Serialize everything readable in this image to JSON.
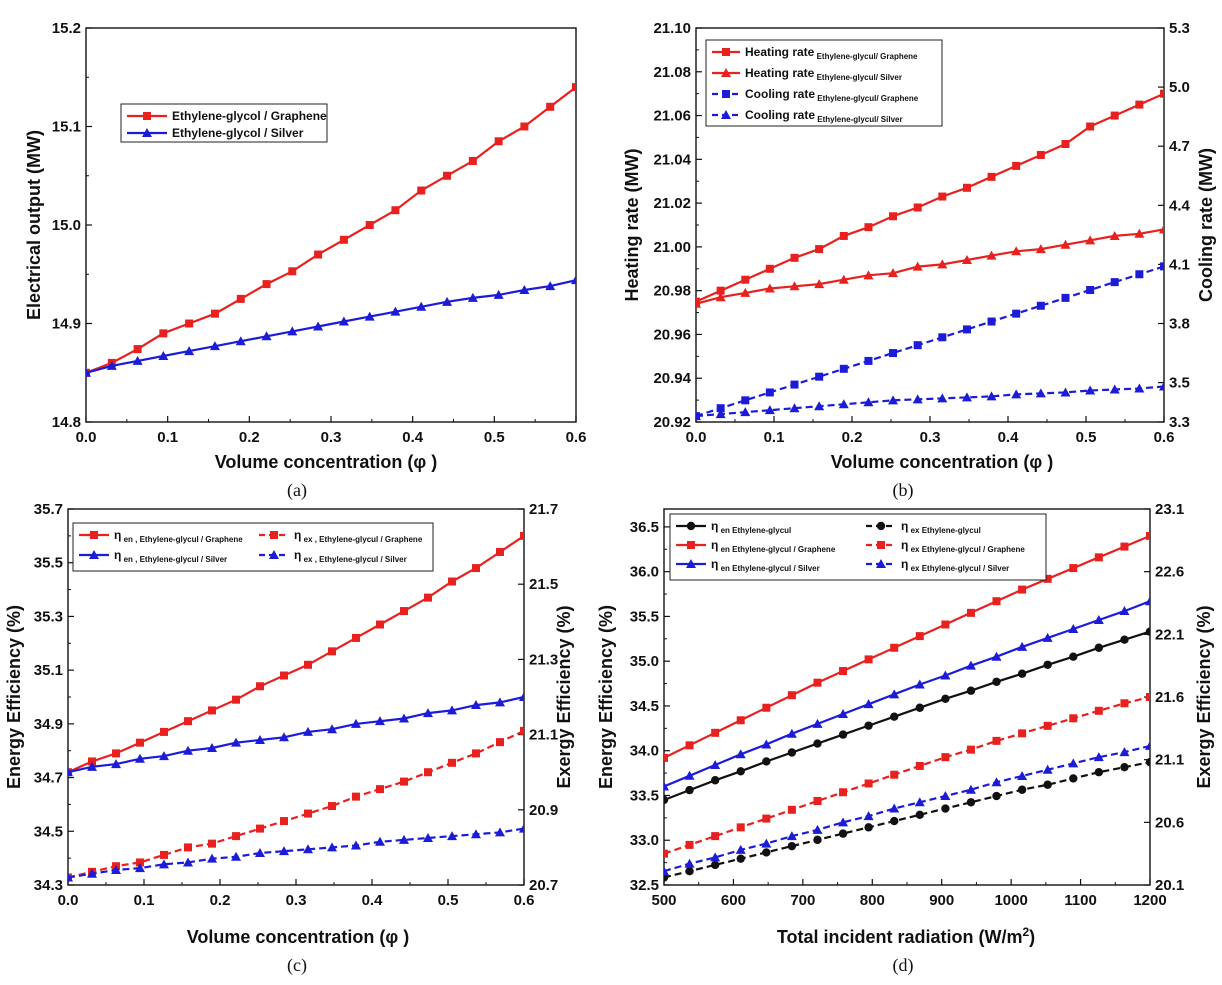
{
  "figure": {
    "panel_labels": [
      "(a)",
      "(b)",
      "(c)",
      "(d)"
    ]
  },
  "chart_data": [
    {
      "type": "line",
      "panel": "(a)",
      "xlabel": "Volume concentration (φ  )",
      "ylabel": "Electrical output (MW)",
      "xlim": [
        0,
        0.6
      ],
      "ylim": [
        14.8,
        15.2
      ],
      "xticks": [
        0,
        0.1,
        0.2,
        0.3,
        0.4,
        0.5,
        0.6
      ],
      "xtick_labels": [
        "0.0",
        "0.1",
        "0.2",
        "0.3",
        "0.4",
        "0.5",
        "0.6"
      ],
      "yticks": [
        14.8,
        14.9,
        15.0,
        15.1,
        15.2
      ],
      "ytick_labels": [
        "14.8",
        "14.9",
        "15.0",
        "15.1",
        "15.2"
      ],
      "legend_position": "upper-left",
      "x": [
        0,
        0.0316,
        0.0632,
        0.0947,
        0.1263,
        0.1579,
        0.1895,
        0.2211,
        0.2526,
        0.2842,
        0.3158,
        0.3474,
        0.3789,
        0.4105,
        0.4421,
        0.4737,
        0.5053,
        0.5368,
        0.5684,
        0.6
      ],
      "series": [
        {
          "name": "Ethylene-glycol / Graphene",
          "color": "#e8201e",
          "dash": "solid",
          "marker": "square",
          "values": [
            14.85,
            14.86,
            14.874,
            14.89,
            14.9,
            14.91,
            14.925,
            14.94,
            14.953,
            14.97,
            14.985,
            15.0,
            15.015,
            15.035,
            15.05,
            15.065,
            15.085,
            15.1,
            15.12,
            15.14
          ]
        },
        {
          "name": "Ethylene-glycol / Silver",
          "color": "#1c1cd8",
          "dash": "solid",
          "marker": "triangle",
          "values": [
            14.85,
            14.857,
            14.862,
            14.867,
            14.872,
            14.877,
            14.882,
            14.887,
            14.892,
            14.897,
            14.902,
            14.907,
            14.912,
            14.917,
            14.922,
            14.926,
            14.929,
            14.934,
            14.938,
            14.944
          ]
        }
      ]
    },
    {
      "type": "line",
      "panel": "(b)",
      "xlabel": "Volume concentration (φ  )",
      "ylabel": "Heating rate (MW)",
      "ylabel_right": "Cooling rate (MW)",
      "xlim": [
        0,
        0.6
      ],
      "ylim": [
        20.92,
        21.1
      ],
      "ylim_right": [
        3.3,
        5.3
      ],
      "xticks": [
        0,
        0.1,
        0.2,
        0.3,
        0.4,
        0.5,
        0.6
      ],
      "xtick_labels": [
        "0.0",
        "0.1",
        "0.2",
        "0.3",
        "0.4",
        "0.5",
        "0.6"
      ],
      "yticks": [
        20.92,
        20.94,
        20.96,
        20.98,
        21.0,
        21.02,
        21.04,
        21.06,
        21.08,
        21.1
      ],
      "ytick_labels": [
        "20.92",
        "20.94",
        "20.96",
        "20.98",
        "21.00",
        "21.02",
        "21.04",
        "21.06",
        "21.08",
        "21.10"
      ],
      "yticks_right": [
        3.3,
        3.5,
        3.8,
        4.1,
        4.4,
        4.7,
        5.0,
        5.3
      ],
      "ytick_labels_right": [
        "3.3",
        "3.5",
        "3.8",
        "4.1",
        "4.4",
        "4.7",
        "5.0",
        "5.3"
      ],
      "legend_position": "top-left",
      "x": [
        0,
        0.0316,
        0.0632,
        0.0947,
        0.1263,
        0.1579,
        0.1895,
        0.2211,
        0.2526,
        0.2842,
        0.3158,
        0.3474,
        0.3789,
        0.4105,
        0.4421,
        0.4737,
        0.5053,
        0.5368,
        0.5684,
        0.6
      ],
      "series": [
        {
          "name": "Heating rate",
          "sub": "Ethylene-glycul/ Graphene",
          "axis": "left",
          "color": "#e8201e",
          "dash": "solid",
          "marker": "square",
          "values": [
            20.975,
            20.98,
            20.985,
            20.99,
            20.995,
            20.999,
            21.005,
            21.009,
            21.014,
            21.018,
            21.023,
            21.027,
            21.032,
            21.037,
            21.042,
            21.047,
            21.055,
            21.06,
            21.065,
            21.07
          ]
        },
        {
          "name": "Heating rate",
          "sub": "Ethylene-glycul/ Silver",
          "axis": "left",
          "color": "#e8201e",
          "dash": "solid",
          "marker": "triangle",
          "values": [
            20.974,
            20.977,
            20.979,
            20.981,
            20.982,
            20.983,
            20.985,
            20.987,
            20.988,
            20.991,
            20.992,
            20.994,
            20.996,
            20.998,
            20.999,
            21.001,
            21.003,
            21.005,
            21.006,
            21.008
          ]
        },
        {
          "name": "Cooling rate",
          "sub": "Ethylene-glycul/ Graphene",
          "axis": "right",
          "color": "#1c1cd8",
          "dash": "dash",
          "marker": "square",
          "values": [
            3.33,
            3.37,
            3.41,
            3.45,
            3.49,
            3.53,
            3.57,
            3.61,
            3.65,
            3.69,
            3.73,
            3.77,
            3.81,
            3.85,
            3.89,
            3.93,
            3.97,
            4.01,
            4.05,
            4.09
          ]
        },
        {
          "name": "Cooling rate",
          "sub": "Ethylene-glycul/ Silver",
          "axis": "right",
          "color": "#1c1cd8",
          "dash": "dash",
          "marker": "triangle",
          "values": [
            3.33,
            3.34,
            3.35,
            3.36,
            3.37,
            3.38,
            3.39,
            3.4,
            3.41,
            3.415,
            3.42,
            3.425,
            3.43,
            3.44,
            3.445,
            3.45,
            3.46,
            3.465,
            3.47,
            3.48
          ]
        }
      ]
    },
    {
      "type": "line",
      "panel": "(c)",
      "xlabel": "Volume concentration (φ  )",
      "ylabel": "Energy Efficiency (%)",
      "ylabel_right": "Exergy Efficiency (%)",
      "xlim": [
        0,
        0.6
      ],
      "ylim": [
        34.3,
        35.7
      ],
      "ylim_right": [
        20.7,
        21.7
      ],
      "xticks": [
        0,
        0.1,
        0.2,
        0.3,
        0.4,
        0.5,
        0.6
      ],
      "xtick_labels": [
        "0.0",
        "0.1",
        "0.2",
        "0.3",
        "0.4",
        "0.5",
        "0.6"
      ],
      "yticks": [
        34.3,
        34.5,
        34.7,
        34.9,
        35.1,
        35.3,
        35.5,
        35.7
      ],
      "ytick_labels": [
        "34.3",
        "34.5",
        "34.7",
        "34.9",
        "35.1",
        "35.3",
        "35.5",
        "35.7"
      ],
      "yticks_right": [
        20.7,
        20.9,
        21.1,
        21.3,
        21.5,
        21.7
      ],
      "ytick_labels_right": [
        "20.7",
        "20.9",
        "21.1",
        "21.3",
        "21.5",
        "21.7"
      ],
      "legend_position": "top",
      "x": [
        0,
        0.0316,
        0.0632,
        0.0947,
        0.1263,
        0.1579,
        0.1895,
        0.2211,
        0.2526,
        0.2842,
        0.3158,
        0.3474,
        0.3789,
        0.4105,
        0.4421,
        0.4737,
        0.5053,
        0.5368,
        0.5684,
        0.6
      ],
      "series": [
        {
          "name": "η",
          "sub": "en , Ethylene-glycul / Graphene",
          "axis": "left",
          "color": "#e8201e",
          "dash": "solid",
          "marker": "square",
          "values": [
            34.72,
            34.76,
            34.79,
            34.83,
            34.87,
            34.91,
            34.95,
            34.99,
            35.04,
            35.08,
            35.12,
            35.17,
            35.22,
            35.27,
            35.32,
            35.37,
            35.43,
            35.48,
            35.54,
            35.6
          ]
        },
        {
          "name": "η",
          "sub": "en , Ethylene-glycul / Silver",
          "axis": "left",
          "color": "#1c1cd8",
          "dash": "solid",
          "marker": "triangle",
          "values": [
            34.72,
            34.74,
            34.75,
            34.77,
            34.78,
            34.8,
            34.81,
            34.83,
            34.84,
            34.85,
            34.87,
            34.88,
            34.9,
            34.91,
            34.92,
            34.94,
            34.95,
            34.97,
            34.98,
            35.0
          ]
        },
        {
          "name": "η",
          "sub": "ex , Ethylene-glycul / Graphene",
          "axis": "right",
          "color": "#e8201e",
          "dash": "dash",
          "marker": "square",
          "values": [
            20.72,
            20.735,
            20.75,
            20.76,
            20.78,
            20.8,
            20.81,
            20.83,
            20.85,
            20.87,
            20.89,
            20.91,
            20.935,
            20.955,
            20.975,
            21.0,
            21.025,
            21.05,
            21.08,
            21.11
          ]
        },
        {
          "name": "η",
          "sub": "ex , Ethylene-glycul / Silver",
          "axis": "right",
          "color": "#1c1cd8",
          "dash": "dash",
          "marker": "triangle",
          "values": [
            20.72,
            20.73,
            20.74,
            20.745,
            20.755,
            20.76,
            20.77,
            20.775,
            20.785,
            20.79,
            20.795,
            20.8,
            20.805,
            20.815,
            20.82,
            20.825,
            20.83,
            20.835,
            20.84,
            20.85
          ]
        }
      ]
    },
    {
      "type": "line",
      "panel": "(d)",
      "xlabel": "Total incident radiation (W/m",
      "xlabel_sup": "2",
      "xlabel_end": ")",
      "ylabel": "Energy Efficiency (%)",
      "ylabel_right": "Exergy Efficiency (%)",
      "xlim": [
        500,
        1200
      ],
      "ylim": [
        32.5,
        36.7
      ],
      "ylim_right": [
        20.1,
        23.1
      ],
      "xticks": [
        500,
        600,
        700,
        800,
        900,
        1000,
        1100,
        1200
      ],
      "xtick_labels": [
        "500",
        "600",
        "700",
        "800",
        "900",
        "1000",
        "1100",
        "1200"
      ],
      "yticks": [
        32.5,
        33.0,
        33.5,
        34.0,
        34.5,
        35.0,
        35.5,
        36.0,
        36.5
      ],
      "ytick_labels": [
        "32.5",
        "33.0",
        "33.5",
        "34.0",
        "34.5",
        "35.0",
        "35.5",
        "36.0",
        "36.5"
      ],
      "yticks_right": [
        20.1,
        20.6,
        21.1,
        21.6,
        22.1,
        22.6,
        23.1
      ],
      "ytick_labels_right": [
        "20.1",
        "20.6",
        "21.1",
        "21.6",
        "22.1",
        "22.6",
        "23.1"
      ],
      "legend_position": "top",
      "x": [
        500,
        536.8,
        573.7,
        610.5,
        647.4,
        684.2,
        721.1,
        757.9,
        794.7,
        831.6,
        868.4,
        905.3,
        942.1,
        978.9,
        1015.8,
        1052.6,
        1089.5,
        1126.3,
        1163.2,
        1200
      ],
      "series": [
        {
          "name": "η",
          "sub": "en  Ethylene-glycul",
          "axis": "left",
          "color": "#111111",
          "dash": "solid",
          "marker": "circle",
          "values": [
            33.45,
            33.56,
            33.67,
            33.77,
            33.88,
            33.98,
            34.08,
            34.18,
            34.28,
            34.38,
            34.48,
            34.58,
            34.67,
            34.77,
            34.86,
            34.96,
            35.05,
            35.15,
            35.24,
            35.33
          ]
        },
        {
          "name": "η",
          "sub": "en  Ethylene-glycul / Graphene",
          "axis": "left",
          "color": "#e8201e",
          "dash": "solid",
          "marker": "square",
          "values": [
            33.92,
            34.06,
            34.2,
            34.34,
            34.48,
            34.62,
            34.76,
            34.89,
            35.02,
            35.15,
            35.28,
            35.41,
            35.54,
            35.67,
            35.8,
            35.92,
            36.04,
            36.16,
            36.28,
            36.4
          ]
        },
        {
          "name": "η",
          "sub": "en  Ethylene-glycul / Silver",
          "axis": "left",
          "color": "#1c1cd8",
          "dash": "solid",
          "marker": "triangle",
          "values": [
            33.6,
            33.72,
            33.84,
            33.96,
            34.07,
            34.19,
            34.3,
            34.41,
            34.52,
            34.63,
            34.74,
            34.84,
            34.95,
            35.05,
            35.16,
            35.26,
            35.36,
            35.46,
            35.56,
            35.67
          ]
        },
        {
          "name": "η",
          "sub": "ex  Ethylene-glycul",
          "axis": "right",
          "color": "#111111",
          "dash": "dash",
          "marker": "circle",
          "values": [
            20.16,
            20.21,
            20.26,
            20.31,
            20.36,
            20.41,
            20.46,
            20.51,
            20.56,
            20.61,
            20.66,
            20.71,
            20.76,
            20.81,
            20.86,
            20.9,
            20.95,
            21.0,
            21.04,
            21.08
          ]
        },
        {
          "name": "η",
          "sub": "ex  Ethylene-glycul / Graphene",
          "axis": "right",
          "color": "#e8201e",
          "dash": "dash",
          "marker": "square",
          "values": [
            20.35,
            20.42,
            20.49,
            20.56,
            20.63,
            20.7,
            20.77,
            20.84,
            20.91,
            20.98,
            21.05,
            21.12,
            21.18,
            21.25,
            21.31,
            21.37,
            21.43,
            21.49,
            21.55,
            21.6
          ]
        },
        {
          "name": "η",
          "sub": "ex  Ethylene-glycul / Silver",
          "axis": "right",
          "color": "#1c1cd8",
          "dash": "dash",
          "marker": "triangle",
          "values": [
            20.21,
            20.27,
            20.32,
            20.38,
            20.43,
            20.49,
            20.54,
            20.6,
            20.65,
            20.71,
            20.76,
            20.81,
            20.86,
            20.92,
            20.97,
            21.02,
            21.07,
            21.12,
            21.16,
            21.21
          ]
        }
      ]
    }
  ]
}
